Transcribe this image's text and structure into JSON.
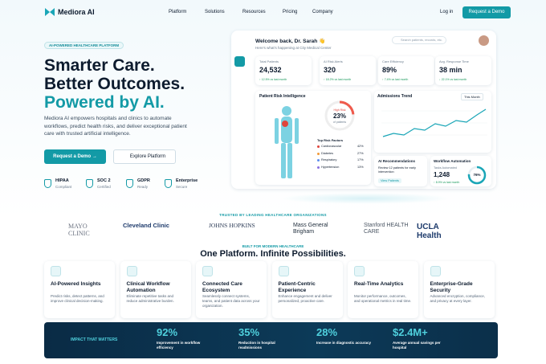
{
  "nav": {
    "brand": "Mediora AI",
    "links": [
      "Platform",
      "Solutions",
      "Resources",
      "Pricing",
      "Company"
    ],
    "login": "Log in",
    "cta": "Request a Demo"
  },
  "hero": {
    "badge": "AI-POWERED HEALTHCARE PLATFORM",
    "title_lines": [
      "Smarter Care.",
      "Better Outcomes.",
      "Powered by AI."
    ],
    "description": "Mediora AI empowers hospitals and clinics to automate workflows, predict health risks, and deliver exceptional patient care with trusted artificial intelligence.",
    "primary_button": "Request a Demo  →",
    "secondary_button": "Explore Platform",
    "badges": [
      {
        "title": "HIPAA",
        "sub": "Compliant"
      },
      {
        "title": "SOC 2",
        "sub": "Certified"
      },
      {
        "title": "GDPR",
        "sub": "Ready"
      },
      {
        "title": "Enterprise",
        "sub": "Secure"
      }
    ]
  },
  "dashboard": {
    "welcome": "Welcome back, Dr. Sarah 👋",
    "subtitle": "Here's what's happening at City Medical Center",
    "search": "Search patients, records, etc.",
    "stats": [
      {
        "label": "Total Patients",
        "value": "24,532",
        "change": "↑ 12.5% vs last month"
      },
      {
        "label": "AI Risk Alerts",
        "value": "320",
        "change": "↑ 18.2% vs last month"
      },
      {
        "label": "Care Efficiency",
        "value": "89%",
        "change": "↑ 7.4% vs last month"
      },
      {
        "label": "Avg. Response Time",
        "value": "38 min",
        "change": "↓ 22.1% vs last month"
      }
    ],
    "risk": {
      "title": "Patient Risk Intelligence",
      "ring_label": "High Risk",
      "ring_value": "23%",
      "ring_sub": "of patients",
      "factors_title": "Top Risk Factors",
      "factors": [
        {
          "name": "Cardiovascular",
          "value": "42%"
        },
        {
          "name": "Diabetes",
          "value": "27%"
        },
        {
          "name": "Respiratory",
          "value": "17%"
        },
        {
          "name": "Hypertension",
          "value": "13%"
        }
      ]
    },
    "trend": {
      "title": "Admissions Trend",
      "period": "This Month"
    },
    "recommendations": {
      "title": "AI Recommendations",
      "text": "Review 12 patients for early intervention",
      "button": "View Patients"
    },
    "workflow": {
      "title": "Workflow Automation",
      "label": "Tasks Automated",
      "value": "1,248",
      "change": "↑ 8.9% vs last month",
      "ring": "76%"
    }
  },
  "trusted": {
    "title": "TRUSTED BY LEADING HEALTHCARE ORGANIZATIONS",
    "logos": [
      "MAYO CLINIC",
      "Cleveland Clinic",
      "JOHNS HOPKINS",
      "Mass General Brigham",
      "Stanford HEALTH CARE",
      "UCLA Health"
    ]
  },
  "features": {
    "eyebrow": "BUILT FOR MODERN HEALTHCARE",
    "title": "One Platform. Infinite Possibilities.",
    "items": [
      {
        "title": "AI-Powered Insights",
        "text": "Predict risks, detect patterns, and improve clinical decision-making."
      },
      {
        "title": "Clinical Workflow Automation",
        "text": "Eliminate repetitive tasks and reduce administrative burden."
      },
      {
        "title": "Connected Care Ecosystem",
        "text": "Seamlessly connect systems, teams, and patient data across your organization."
      },
      {
        "title": "Patient-Centric Experience",
        "text": "Enhance engagement and deliver personalized, proactive care."
      },
      {
        "title": "Real-Time Analytics",
        "text": "Monitor performance, outcomes, and operational metrics in real time."
      },
      {
        "title": "Enterprise-Grade Security",
        "text": "Advanced encryption, compliance, and privacy at every layer."
      }
    ]
  },
  "impact": {
    "title": "IMPACT THAT MATTERS",
    "items": [
      {
        "value": "92%",
        "text": "Improvement in workflow efficiency"
      },
      {
        "value": "35%",
        "text": "Reduction in hospital readmissions"
      },
      {
        "value": "28%",
        "text": "Increase in diagnostic accuracy"
      },
      {
        "value": "$2.4M+",
        "text": "Average annual savings per hospital"
      }
    ]
  }
}
